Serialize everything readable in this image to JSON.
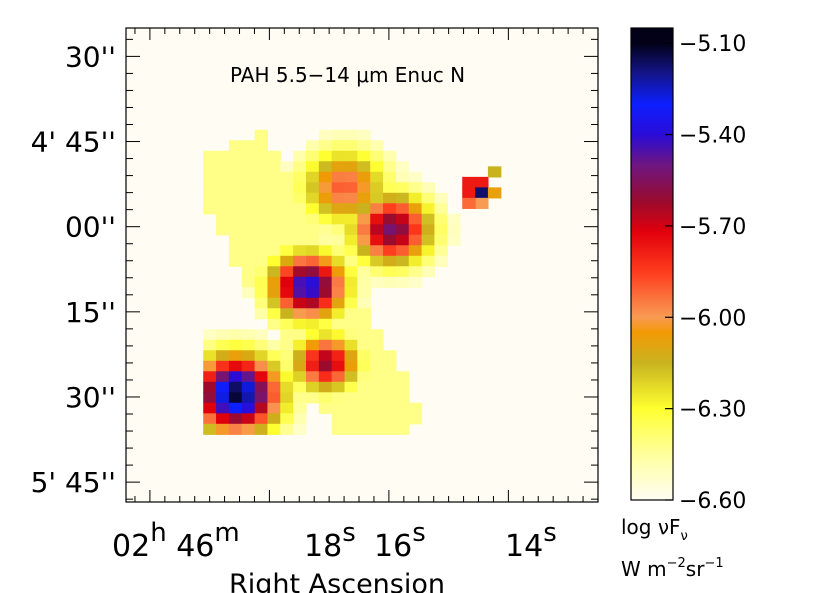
{
  "chart_data": {
    "type": "heatmap",
    "title": "PAH 5.5−14 μm Enuc N",
    "xlabel": "Right Ascension",
    "ylabel": "",
    "x_ticks": [
      {
        "ra_s": 19.4,
        "h": "02",
        "hu": "h",
        "m": "46",
        "mu": "m"
      },
      {
        "ra_s": 18.0,
        "s": "18",
        "su": "s"
      },
      {
        "ra_s": 16.0,
        "s": "16",
        "su": "s"
      },
      {
        "ra_s": 14.0,
        "s": "14",
        "su": "s"
      }
    ],
    "xlim_s": [
      20.4,
      12.5
    ],
    "y_ticks": [
      {
        "dec_arcsec": 30,
        "label": "30''"
      },
      {
        "dec_arcsec": 45,
        "label": "4' 45''"
      },
      {
        "dec_arcsec": 60,
        "label": "00''"
      },
      {
        "dec_arcsec": 75,
        "label": "15''"
      },
      {
        "dec_arcsec": 90,
        "label": "30''"
      },
      {
        "dec_arcsec": 105,
        "label": "5' 45''"
      }
    ],
    "ylim_arcsec": [
      25.0,
      108.5
    ],
    "colorbar": {
      "label_line1": "log νF",
      "label_line1_sub": "ν",
      "label_line2_pre": "W m",
      "label_line2_sup1": "−2",
      "label_line2_mid": "sr",
      "label_line2_sup2": "−1",
      "range": [
        -6.6,
        -5.05
      ],
      "ticks": [
        {
          "value": -5.1,
          "label": "−5.10"
        },
        {
          "value": -5.4,
          "label": "−5.40"
        },
        {
          "value": -5.7,
          "label": "−5.70"
        },
        {
          "value": -6.0,
          "label": "−6.00"
        },
        {
          "value": -6.3,
          "label": "−6.30"
        },
        {
          "value": -6.6,
          "label": "−6.60"
        }
      ]
    },
    "colormap": [
      [
        -6.6,
        "#fffdf3"
      ],
      [
        -6.45,
        "#ffff9e"
      ],
      [
        -6.3,
        "#ffff30"
      ],
      [
        -6.15,
        "#c8b31f"
      ],
      [
        -6.05,
        "#f29a05"
      ],
      [
        -6.0,
        "#f89b53"
      ],
      [
        -5.85,
        "#fe3b1d"
      ],
      [
        -5.72,
        "#e1000c"
      ],
      [
        -5.62,
        "#9a0b2e"
      ],
      [
        -5.5,
        "#6e1680"
      ],
      [
        -5.4,
        "#2a0cd8"
      ],
      [
        -5.3,
        "#0d1fff"
      ],
      [
        -5.2,
        "#14148a"
      ],
      [
        -5.1,
        "#020118"
      ]
    ],
    "grid": {
      "x_start_s": 19.0,
      "ra_step_s": 0.215,
      "dec_start_arcsec": 42.0,
      "dec_step_arcsec": 1.85,
      "x_start_col": 9,
      "y_start_row": 4,
      "sources": [
        {
          "ra_s": 18.55,
          "dec_arcsec": 89.5,
          "sigma": 2.3,
          "peak": 0.99
        },
        {
          "ra_s": 17.35,
          "dec_arcsec": 70.5,
          "sigma": 2.0,
          "peak": 0.83
        },
        {
          "ra_s": 17.05,
          "dec_arcsec": 84.0,
          "sigma": 1.7,
          "peak": 0.66
        },
        {
          "ra_s": 15.95,
          "dec_arcsec": 60.5,
          "sigma": 2.1,
          "peak": 0.72
        },
        {
          "ra_s": 16.75,
          "dec_arcsec": 53.0,
          "sigma": 2.3,
          "peak": 0.47
        }
      ],
      "compact_source": {
        "ra_s": 14.45,
        "dec_arcsec": 54.0,
        "peak": 0.95
      }
    }
  }
}
